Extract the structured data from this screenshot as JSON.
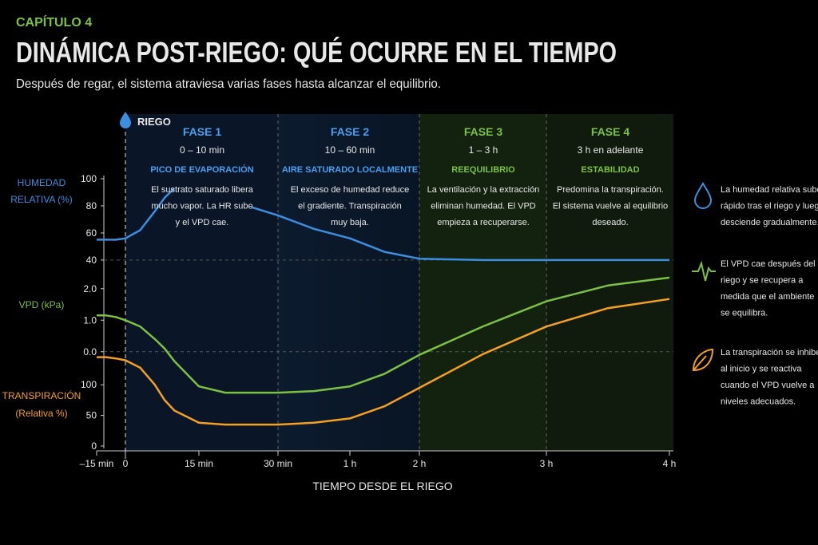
{
  "chapter": "CAPÍTULO 4",
  "title": "DINÁMICA POST-RIEGO: QUÉ OCURRE EN EL TIEMPO",
  "subtitle": "Después de regar, el sistema atraviesa varias fases hasta alcanzar el equilibrio.",
  "event_label": "RIEGO",
  "phases": [
    {
      "name": "FASE 1",
      "time": "0 – 10 min",
      "heading": "PICO DE EVAPORACIÓN",
      "text_lines": [
        "El sustrato saturado libera",
        "mucho vapor. La HR sube",
        "y el VPD cae."
      ]
    },
    {
      "name": "FASE 2",
      "time": "10 – 60 min",
      "heading": "AIRE SATURADO LOCALMENTE",
      "text_lines": [
        "El exceso de humedad reduce",
        "el gradiente. Transpiración",
        "muy baja."
      ]
    },
    {
      "name": "FASE 3",
      "time": "1 – 3 h",
      "heading": "REEQUILIBRIO",
      "text_lines": [
        "La ventilación y la extracción",
        "eliminan humedad. El VPD",
        "empieza a recuperarse."
      ]
    },
    {
      "name": "FASE 4",
      "time": "3 h en adelante",
      "heading": "ESTABILIDAD",
      "text_lines": [
        "Predomina la transpiración.",
        "El sistema vuelve al equilibrio",
        "deseado."
      ]
    }
  ],
  "notes": [
    {
      "lines": [
        "La humedad relativa sube",
        "rápido tras el riego y luego",
        "desciende gradualmente."
      ]
    },
    {
      "lines": [
        "El VPD cae después del",
        "riego y se recupera a",
        "medida que el ambiente",
        "se equilibra."
      ]
    },
    {
      "lines": [
        "La transpiración se inhibe",
        "al inicio y se reactiva",
        "cuando el VPD vuelve a",
        "niveles adecuados."
      ]
    }
  ],
  "chart_data": {
    "type": "line",
    "x_label": "TIEMPO DESDE EL RIEGO",
    "x": [
      -15,
      -10,
      -5,
      0,
      3,
      6,
      8,
      10,
      15,
      20,
      25,
      30,
      45,
      60,
      90,
      120,
      150,
      180,
      210,
      240
    ],
    "xlim": [
      -15,
      240
    ],
    "xticks": [
      {
        "value": -15,
        "label": "–15 min"
      },
      0,
      {
        "value": 15,
        "label": "15 min"
      },
      {
        "value": 30,
        "label": "30 min"
      },
      {
        "value": 60,
        "label": "1 h"
      },
      {
        "value": 120,
        "label": "2 h"
      },
      {
        "value": 180,
        "label": "3 h"
      },
      {
        "value": 240,
        "label": "4 h"
      }
    ],
    "series": [
      {
        "y_label": [
          "HUMEDAD",
          "RELATIVA (%)"
        ],
        "color": "#3b8fe0",
        "ylim": [
          37,
          100
        ],
        "yticks": [
          40,
          60,
          80,
          100
        ],
        "dashed_grid": 40,
        "values": [
          55,
          55,
          55,
          56,
          62,
          76,
          86,
          93,
          null,
          null,
          79,
          73,
          63,
          56,
          46,
          41,
          40,
          40,
          40,
          40
        ]
      },
      {
        "y_label": [
          "VPD (kPa)"
        ],
        "color": "#7cc242",
        "ylim": [
          -1.5,
          2.5
        ],
        "yticks": [
          {
            "value": 0,
            "label": "0.0"
          },
          {
            "value": 1,
            "label": "1.0"
          },
          {
            "value": 2,
            "label": "2.0"
          }
        ],
        "dashed_grid": 0,
        "values": [
          1.15,
          1.15,
          1.1,
          1.0,
          0.8,
          0.4,
          0.1,
          -0.3,
          -1.1,
          -1.3,
          -1.3,
          -1.3,
          -1.25,
          -1.1,
          -0.7,
          -0.1,
          0.8,
          1.6,
          2.1,
          2.35
        ]
      },
      {
        "y_label": [
          "TRANSPIRACIÓN",
          "(Relativa %)"
        ],
        "color": "#f5a020",
        "ylim": [
          0,
          250
        ],
        "yticks": [
          0,
          50,
          100
        ],
        "values": [
          145,
          145,
          143,
          140,
          128,
          100,
          75,
          58,
          38,
          35,
          35,
          35,
          38,
          45,
          65,
          95,
          150,
          195,
          225,
          240
        ]
      }
    ]
  }
}
